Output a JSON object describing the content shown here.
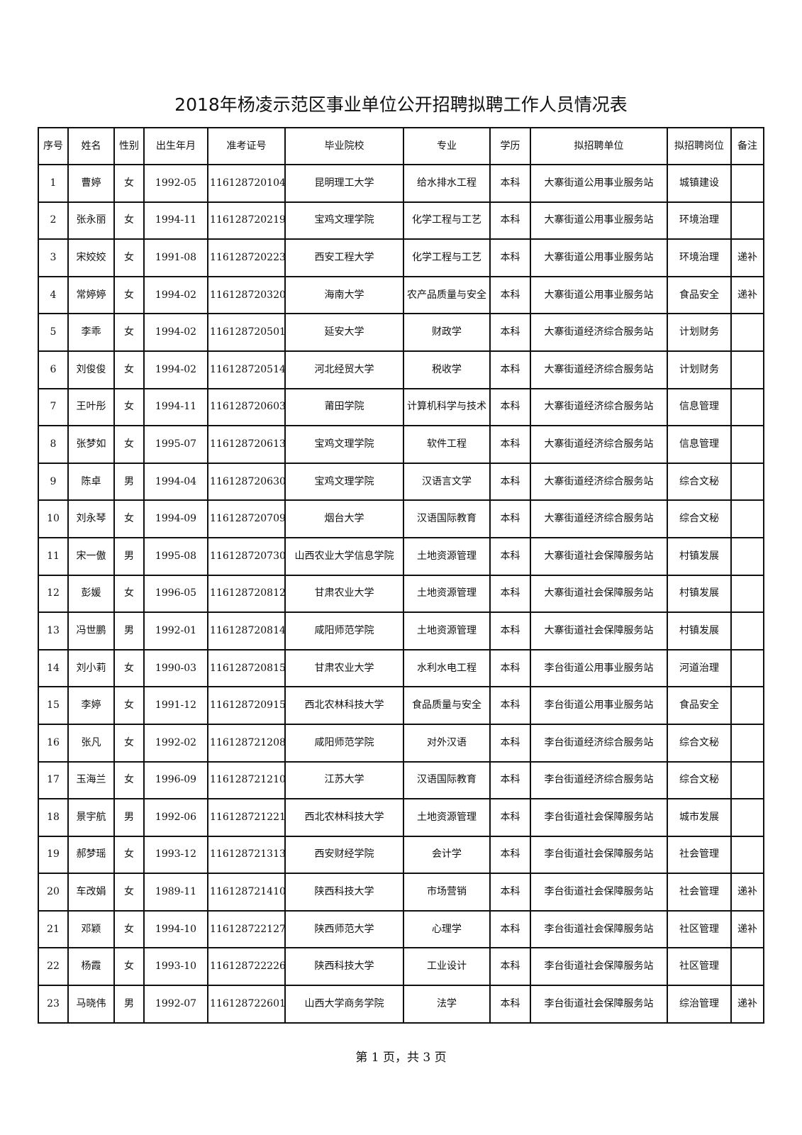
{
  "title": "2018年杨凌示范区事业单位公开招聘拟聘工作人员情况表",
  "columns": [
    "序号",
    "姓名",
    "性别",
    "出生年月",
    "准考证号",
    "毕业院校",
    "专业",
    "学历",
    "拟招聘单位",
    "拟招聘岗位",
    "备注"
  ],
  "rows": [
    [
      "1",
      "曹婷",
      "女",
      "1992-05",
      "116128720104",
      "昆明理工大学",
      "给水排水工程",
      "本科",
      "大寨街道公用事业服务站",
      "城镇建设",
      ""
    ],
    [
      "2",
      "张永丽",
      "女",
      "1994-11",
      "116128720219",
      "宝鸡文理学院",
      "化学工程与工艺",
      "本科",
      "大寨街道公用事业服务站",
      "环境治理",
      ""
    ],
    [
      "3",
      "宋姣姣",
      "女",
      "1991-08",
      "116128720223",
      "西安工程大学",
      "化学工程与工艺",
      "本科",
      "大寨街道公用事业服务站",
      "环境治理",
      "递补"
    ],
    [
      "4",
      "常婷婷",
      "女",
      "1994-02",
      "116128720320",
      "海南大学",
      "农产品质量与安全",
      "本科",
      "大寨街道公用事业服务站",
      "食品安全",
      "递补"
    ],
    [
      "5",
      "李乖",
      "女",
      "1994-02",
      "116128720501",
      "延安大学",
      "财政学",
      "本科",
      "大寨街道经济综合服务站",
      "计划财务",
      ""
    ],
    [
      "6",
      "刘俊俊",
      "女",
      "1994-02",
      "116128720514",
      "河北经贸大学",
      "税收学",
      "本科",
      "大寨街道经济综合服务站",
      "计划财务",
      ""
    ],
    [
      "7",
      "王叶彤",
      "女",
      "1994-11",
      "116128720603",
      "莆田学院",
      "计算机科学与技术",
      "本科",
      "大寨街道经济综合服务站",
      "信息管理",
      ""
    ],
    [
      "8",
      "张梦如",
      "女",
      "1995-07",
      "116128720613",
      "宝鸡文理学院",
      "软件工程",
      "本科",
      "大寨街道经济综合服务站",
      "信息管理",
      ""
    ],
    [
      "9",
      "陈卓",
      "男",
      "1994-04",
      "116128720630",
      "宝鸡文理学院",
      "汉语言文学",
      "本科",
      "大寨街道经济综合服务站",
      "综合文秘",
      ""
    ],
    [
      "10",
      "刘永琴",
      "女",
      "1994-09",
      "116128720709",
      "烟台大学",
      "汉语国际教育",
      "本科",
      "大寨街道经济综合服务站",
      "综合文秘",
      ""
    ],
    [
      "11",
      "宋一傲",
      "男",
      "1995-08",
      "116128720730",
      "山西农业大学信息学院",
      "土地资源管理",
      "本科",
      "大寨街道社会保障服务站",
      "村镇发展",
      ""
    ],
    [
      "12",
      "彭媛",
      "女",
      "1996-05",
      "116128720812",
      "甘肃农业大学",
      "土地资源管理",
      "本科",
      "大寨街道社会保障服务站",
      "村镇发展",
      ""
    ],
    [
      "13",
      "冯世鹏",
      "男",
      "1992-01",
      "116128720814",
      "咸阳师范学院",
      "土地资源管理",
      "本科",
      "大寨街道社会保障服务站",
      "村镇发展",
      ""
    ],
    [
      "14",
      "刘小莉",
      "女",
      "1990-03",
      "116128720815",
      "甘肃农业大学",
      "水利水电工程",
      "本科",
      "李台街道公用事业服务站",
      "河道治理",
      ""
    ],
    [
      "15",
      "李婷",
      "女",
      "1991-12",
      "116128720915",
      "西北农林科技大学",
      "食品质量与安全",
      "本科",
      "李台街道公用事业服务站",
      "食品安全",
      ""
    ],
    [
      "16",
      "张凡",
      "女",
      "1992-02",
      "116128721208",
      "咸阳师范学院",
      "对外汉语",
      "本科",
      "李台街道经济综合服务站",
      "综合文秘",
      ""
    ],
    [
      "17",
      "玉海兰",
      "女",
      "1996-09",
      "116128721210",
      "江苏大学",
      "汉语国际教育",
      "本科",
      "李台街道经济综合服务站",
      "综合文秘",
      ""
    ],
    [
      "18",
      "景宇航",
      "男",
      "1992-06",
      "116128721221",
      "西北农林科技大学",
      "土地资源管理",
      "本科",
      "李台街道社会保障服务站",
      "城市发展",
      ""
    ],
    [
      "19",
      "郝梦瑶",
      "女",
      "1993-12",
      "116128721313",
      "西安财经学院",
      "会计学",
      "本科",
      "李台街道社会保障服务站",
      "社会管理",
      ""
    ],
    [
      "20",
      "车改娟",
      "女",
      "1989-11",
      "116128721410",
      "陕西科技大学",
      "市场营销",
      "本科",
      "李台街道社会保障服务站",
      "社会管理",
      "递补"
    ],
    [
      "21",
      "邓颖",
      "女",
      "1994-10",
      "116128722127",
      "陕西师范大学",
      "心理学",
      "本科",
      "李台街道社会保障服务站",
      "社区管理",
      "递补"
    ],
    [
      "22",
      "杨霞",
      "女",
      "1993-10",
      "116128722226",
      "陕西科技大学",
      "工业设计",
      "本科",
      "李台街道社会保障服务站",
      "社区管理",
      ""
    ],
    [
      "23",
      "马晓伟",
      "男",
      "1992-07",
      "116128722601",
      "山西大学商务学院",
      "法学",
      "本科",
      "李台街道社会保障服务站",
      "综治管理",
      "递补"
    ]
  ],
  "footer": "第 1 页，共 3 页"
}
